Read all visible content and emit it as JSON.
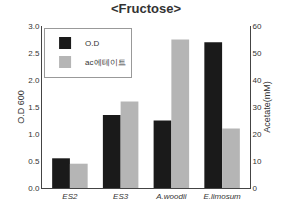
{
  "chart_data": {
    "type": "bar",
    "title": "<Fructose>",
    "categories": [
      "ES2",
      "ES3",
      "A.woodii",
      "E.limosum"
    ],
    "series": [
      {
        "name": "O.D",
        "color": "#1a1a1a",
        "values": [
          0.55,
          1.35,
          1.25,
          2.7
        ]
      },
      {
        "name": "ac에테이트",
        "color": "#b5b5b5",
        "values": [
          9,
          32,
          55,
          22
        ],
        "axis": "y2"
      }
    ],
    "ylabel": "O.D 600",
    "y2label": "Acetate(mM)",
    "ylim": [
      0.0,
      3.0
    ],
    "yticks": [
      {
        "value": 0.0,
        "label": "0.0"
      },
      0.5,
      {
        "value": 1.0,
        "label": "1.0"
      },
      1.5,
      {
        "value": 2.0,
        "label": "2.0"
      },
      2.5,
      {
        "value": 3.0,
        "label": "3.0"
      }
    ],
    "y2lim": [
      0,
      60
    ],
    "y2ticks": [
      0,
      10,
      20,
      30,
      40,
      50,
      60
    ],
    "grid": false,
    "legend": "upper left"
  }
}
